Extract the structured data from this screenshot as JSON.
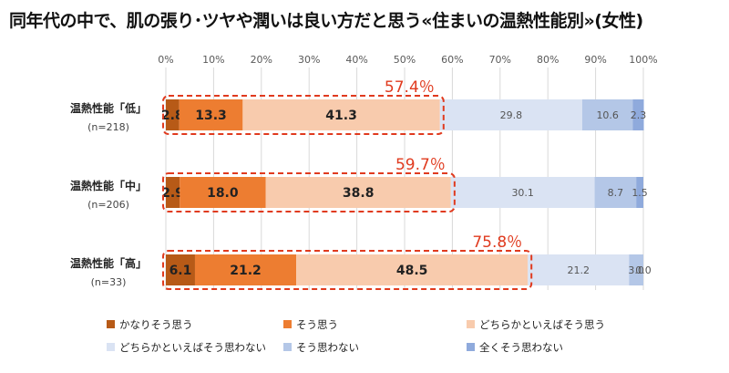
{
  "title": "同年代の中で、肌の張り･ツヤや潤いは良い方だと思う«住まいの温熱性能別»(女性)",
  "chart_data": {
    "type": "bar",
    "stacked": true,
    "orientation": "horizontal",
    "percent_scale": true,
    "xlim": [
      0,
      100
    ],
    "x_ticks": [
      "0%",
      "10%",
      "20%",
      "30%",
      "40%",
      "50%",
      "60%",
      "70%",
      "80%",
      "90%",
      "100%"
    ],
    "grid": true,
    "legend_placement": "bottom",
    "categories": [
      "温熱性能「低」",
      "温熱性能「中」",
      "温熱性能「高」"
    ],
    "category_n": [
      "(n=218)",
      "(n=206)",
      "(n=33)"
    ],
    "series": [
      {
        "name": "かなりそう思う",
        "color": "#b75a17",
        "values": [
          2.8,
          2.9,
          6.1
        ]
      },
      {
        "name": "そう思う",
        "color": "#ed7d31",
        "values": [
          13.3,
          18.0,
          21.2
        ]
      },
      {
        "name": "どちらかといえばそう思う",
        "color": "#f8cbad",
        "values": [
          41.3,
          38.8,
          48.5
        ]
      },
      {
        "name": "どちらかといえばそう思わない",
        "color": "#dae3f3",
        "values": [
          29.8,
          30.1,
          21.2
        ]
      },
      {
        "name": "そう思わない",
        "color": "#b4c7e7",
        "values": [
          10.6,
          8.7,
          3.0
        ]
      },
      {
        "name": "全くそう思わない",
        "color": "#8faadc",
        "values": [
          2.3,
          1.5,
          0.0
        ]
      }
    ],
    "value_labels": [
      [
        "2.8",
        "13.3",
        "41.3",
        "29.8",
        "10.6",
        "2.3"
      ],
      [
        "2.9",
        "18.0",
        "38.8",
        "30.1",
        "8.7",
        "1.5"
      ],
      [
        "6.1",
        "21.2",
        "48.5",
        "21.2",
        "3.0",
        "0.0"
      ]
    ],
    "annotations": [
      "57.4％",
      "59.7％",
      "75.8％"
    ]
  }
}
